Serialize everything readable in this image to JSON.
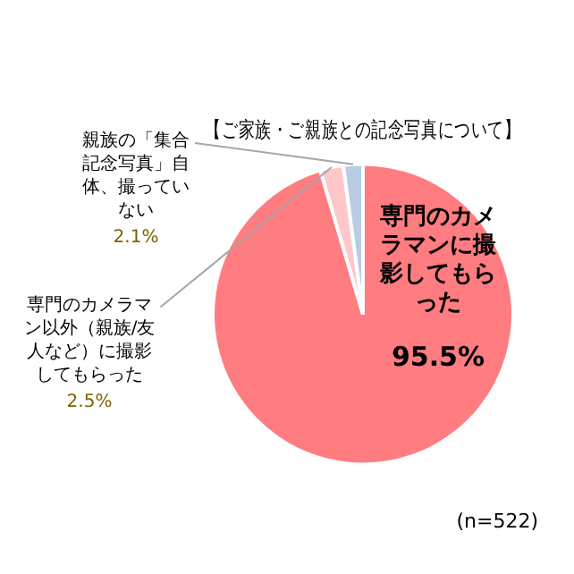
{
  "chart_data": {
    "type": "pie",
    "title": "【ご家族・ご親族との記念写真について】",
    "categories": [
      "専門のカメラマンに撮影してもらった",
      "専門のカメラマン以外（親族/友人など）に撮影してもらった",
      "親族の「集合記念写真」自体、撮っていない"
    ],
    "values": [
      95.5,
      2.5,
      2.1
    ],
    "colors": [
      "#ff7c80",
      "#ffc7c9",
      "#b8cce4"
    ],
    "value_labels": [
      "95.5%",
      "2.5%",
      "2.1%"
    ],
    "annotations": [
      "(n=522)"
    ],
    "legend": false
  }
}
